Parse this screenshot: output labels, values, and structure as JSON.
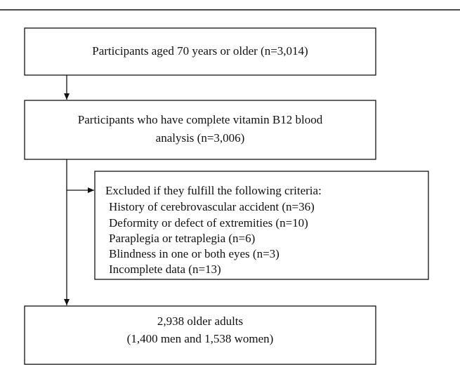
{
  "nodes": [
    {
      "lines": [
        "Participants aged 70 years or older (n=3,014)"
      ]
    },
    {
      "lines": [
        "Participants who have complete vitamin B12 blood",
        "analysis (n=3,006)"
      ]
    },
    {
      "lines": [
        "2,938 older adults",
        "(1,400 men and 1,538 women)"
      ]
    }
  ],
  "exclusion": {
    "heading": "Excluded if they fulfill the following criteria:",
    "items": [
      "History of cerebrovascular accident (n=36)",
      "Deformity or defect of extremities (n=10)",
      "Paraplegia or tetraplegia (n=6)",
      "Blindness in one or both eyes (n=3)",
      "Incomplete data (n=13)"
    ]
  }
}
